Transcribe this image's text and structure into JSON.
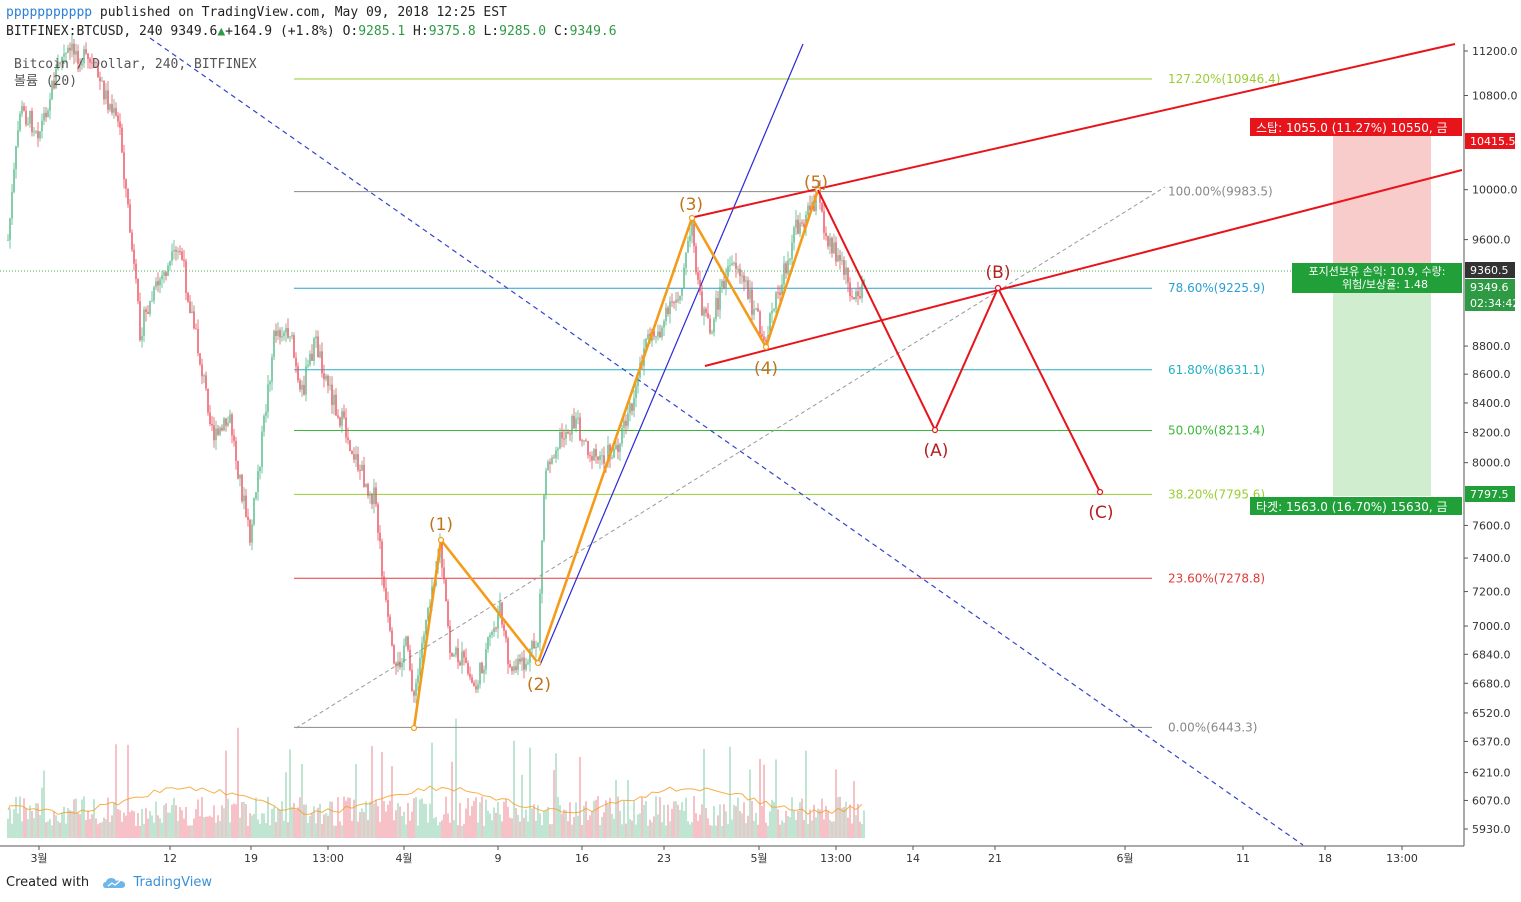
{
  "header": {
    "author": "ppppppppppp",
    "published_text": "published on TradingView.com, May 09, 2018 12:25 EST",
    "symbol": "BITFINEX:BTCUSD, 240",
    "last": "9349.6",
    "change": "+164.9 (+1.8%)",
    "open_label": "O:",
    "open": "9285.1",
    "high_label": "H:",
    "high": "9375.8",
    "low_label": "L:",
    "low": "9285.0",
    "close_label": "C:",
    "close": "9349.6"
  },
  "legend": {
    "title": "Bitcoin / Dollar, 240, BITFINEX",
    "volume": "볼륨 (20)"
  },
  "footer": {
    "created_with": "Created with",
    "brand": "TradingView"
  },
  "colors": {
    "up": "#53b987",
    "down": "#eb4d5c",
    "elliott": "#f59b1a",
    "abc": "#e8141b",
    "trend_blue": "#2a2ad6",
    "dashed_blue": "#3344cc",
    "channel": "#e8141b"
  },
  "chart_data": {
    "type": "candlestick",
    "y_axis": {
      "ticks": [
        "11200.0",
        "10800.0",
        "10415.5",
        "10000.0",
        "9600.0",
        "9360.5",
        "9349.6",
        "8800.0",
        "8600.0",
        "8400.0",
        "8200.0",
        "8000.0",
        "7797.5",
        "7600.0",
        "7400.0",
        "7200.0",
        "7000.0",
        "6840.0",
        "6680.0",
        "6520.0",
        "6370.0",
        "6210.0",
        "6070.0",
        "5930.0"
      ],
      "tick_values": [
        11200,
        10800,
        10000,
        9600,
        8800,
        8600,
        8400,
        8200,
        8000,
        7600,
        7400,
        7200,
        7000,
        6840,
        6680,
        6520,
        6370,
        6210,
        6070,
        5930
      ]
    },
    "x_axis": {
      "ticks": [
        "3월",
        "12",
        "19",
        "13:00",
        "4월",
        "9",
        "16",
        "23",
        "5월",
        "13:00",
        "14",
        "21",
        "6월",
        "11",
        "18",
        "13:00"
      ],
      "tick_positions": [
        39,
        170,
        251,
        328,
        404,
        498,
        582,
        664,
        759,
        836,
        913,
        995,
        1125,
        1243,
        1325,
        1402
      ]
    },
    "fibonacci": [
      {
        "label": "127.20%(10946.4)",
        "value": 10946.4,
        "color": "#9acd32"
      },
      {
        "label": "100.00%(9983.5)",
        "value": 9983.5,
        "color": "#888888"
      },
      {
        "label": "78.60%(9225.9)",
        "value": 9225.9,
        "color": "#2a9fd6"
      },
      {
        "label": "61.80%(8631.1)",
        "value": 8631.1,
        "color": "#21b1c4"
      },
      {
        "label": "50.00%(8213.4)",
        "value": 8213.4,
        "color": "#3bb83b"
      },
      {
        "label": "38.20%(7795.6)",
        "value": 7795.6,
        "color": "#9acd32"
      },
      {
        "label": "23.60%(7278.8)",
        "value": 7278.8,
        "color": "#e03c3c"
      },
      {
        "label": "0.00%(6443.3)",
        "value": 6443.3,
        "color": "#888888"
      }
    ],
    "elliott_waves": [
      {
        "label": "(1)",
        "value": 7510
      },
      {
        "label": "(2)",
        "value": 6800
      },
      {
        "label": "(3)",
        "value": 9760
      },
      {
        "label": "(4)",
        "value": 8800
      },
      {
        "label": "(5)",
        "value": 9983.5
      }
    ],
    "corrective_waves": [
      {
        "label": "(A)",
        "value": 8213.4
      },
      {
        "label": "(B)",
        "value": 9225.9
      },
      {
        "label": "(C)",
        "value": 7795.6
      }
    ],
    "price_labels": {
      "stop_price": "10415.5",
      "last_price": "9360.5",
      "current_price": "9349.6",
      "countdown": "02:34:42",
      "target_price": "7797.5"
    },
    "position": {
      "stop_text": "스탑: 1055.0 (11.27%) 10550, 금",
      "pnl_text": "포지션보유 손익: 10.9, 수량:",
      "rr_text": "위험/보상율: 1.48",
      "target_text": "타겟: 1563.0 (16.70%) 15630, 금"
    }
  }
}
